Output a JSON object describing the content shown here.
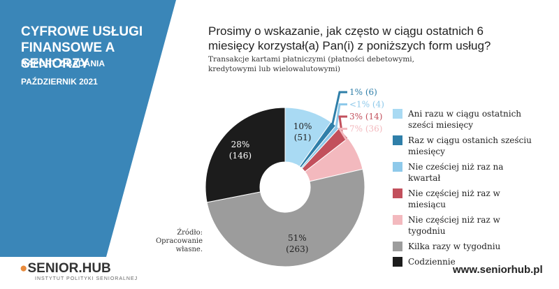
{
  "header": {
    "report_title": "CYFROWE USŁUGI FINANSOWE A SENIORZY",
    "report_subtitle": "RAPORT Z BADANIA",
    "date": "PAŹDZIERNIK 2021"
  },
  "chart_data": {
    "type": "donut",
    "title": "Prosimy o wskazanie, jak często w ciągu ostatnich 6 miesięcy korzystał(a) Pan(i) z poniższych form usług?",
    "subtitle": "Transakcje kartami płatniczymi (płatności debetowymi, kredytowymi lub wielowalutowymi)",
    "categories": [
      "Ani razu w ciągu ostatnich sześci miesięcy",
      "Raz w ciągu ostanich sześciu miesięcy",
      "Nie cześciej niż raz na kwartał",
      "Nie częściej niż raz w miesiącu",
      "Nie częściej niż raz w tygodniu",
      "Kilka razy w tygodniu",
      "Codziennie"
    ],
    "values": [
      9.8,
      1.2,
      0.8,
      2.7,
      6.9,
      50.6,
      28.1
    ],
    "value_labels": [
      [
        "10%",
        "(51)"
      ],
      [
        "1% (6)"
      ],
      [
        "<1% (4)"
      ],
      [
        "3% (14)"
      ],
      [
        "7% (36)"
      ],
      [
        "51%",
        "(263)"
      ],
      [
        "28%",
        "(146)"
      ]
    ],
    "colors": [
      "#a9daf3",
      "#2f7fa9",
      "#8ec9ea",
      "#c2505c",
      "#f3b9be",
      "#9c9c9c",
      "#1c1c1c"
    ],
    "legend": "right",
    "source": "Źródło: Opracowanie własne."
  },
  "footer": {
    "logo": "SENIOR.HUB",
    "logo_subtitle": "INSTYTUT POLITYKI SENIORALNEJ",
    "url": "www.seniorhub.pl"
  }
}
